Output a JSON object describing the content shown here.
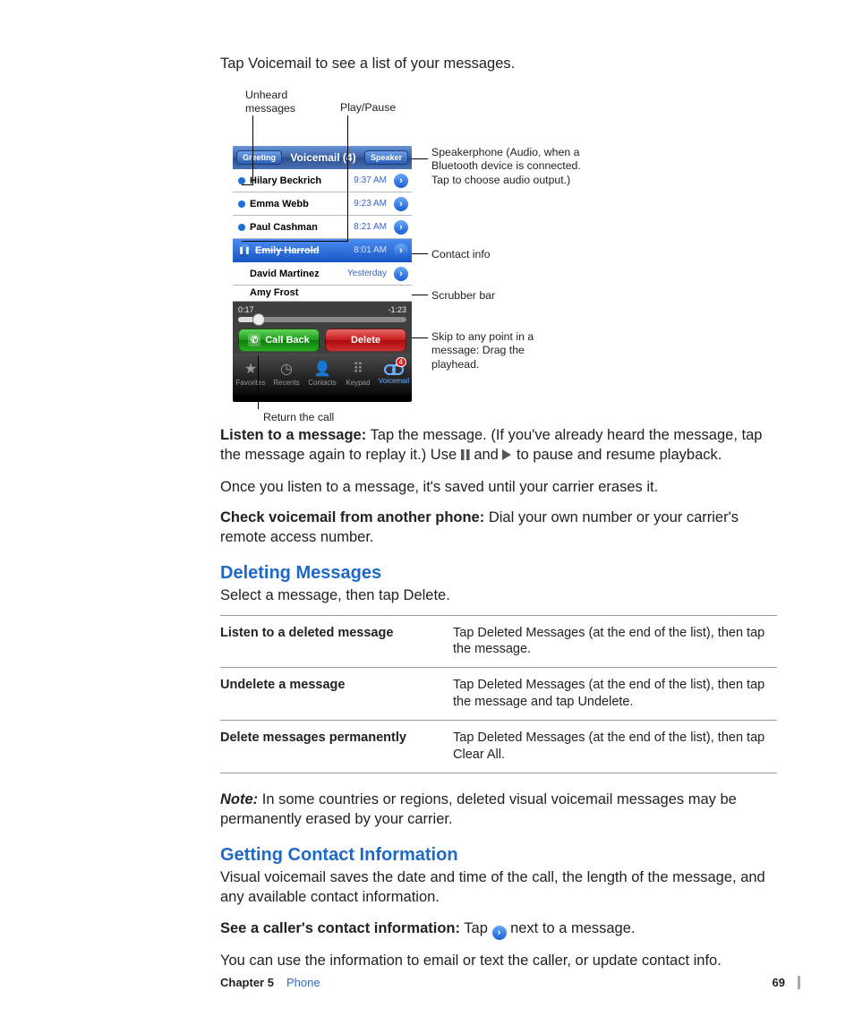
{
  "intro": "Tap Voicemail to see a list of your messages.",
  "callouts": {
    "unheard": "Unheard\nmessages",
    "playpause": "Play/Pause",
    "speaker": "Speakerphone (Audio, when a Bluetooth device is connected. Tap to choose audio output.)",
    "contact": "Contact info",
    "scrubber": "Scrubber bar",
    "skip": "Skip to any point in a message: Drag the playhead.",
    "return": "Return the call"
  },
  "phone": {
    "greeting": "Greeting",
    "title": "Voicemail (4)",
    "speaker": "Speaker",
    "rows": [
      {
        "dot": true,
        "name": "Hilary Beckrich",
        "time": "9:37 AM"
      },
      {
        "dot": true,
        "name": "Emma Webb",
        "time": "9:23 AM"
      },
      {
        "dot": true,
        "name": "Paul Cashman",
        "time": "8:21 AM"
      },
      {
        "dot": false,
        "name": "Emily Harrold",
        "time": "8:01 AM",
        "selected": true,
        "struck": true,
        "pp": true
      },
      {
        "dot": false,
        "name": "David Martinez",
        "time": "Yesterday"
      }
    ],
    "partial": "Amy Frost",
    "elapsed": "0:17",
    "remaining": "-1:23",
    "callback": "Call Back",
    "delete": "Delete",
    "tabs": [
      {
        "label": "Favorites",
        "icon": "★"
      },
      {
        "label": "Recents",
        "icon": "◷"
      },
      {
        "label": "Contacts",
        "icon": "👤"
      },
      {
        "label": "Keypad",
        "icon": "⠿"
      },
      {
        "label": "Voicemail",
        "icon": "vm",
        "active": true,
        "badge": "4"
      }
    ]
  },
  "listen_head": "Listen to a message:",
  "listen_body": " Tap the message. (If you've already heard the message, tap the message again to replay it.) Use ",
  "listen_body2": " and ",
  "listen_body3": " to pause and resume playback.",
  "listen_after": "Once you listen to a message, it's saved until your carrier erases it.",
  "check_head": "Check voicemail from another phone:",
  "check_body": " Dial your own number or your carrier's remote access number.",
  "h_delete": "Deleting Messages",
  "delete_intro": "Select a message, then tap Delete.",
  "table": [
    {
      "l": "Listen to a deleted message",
      "r": "Tap Deleted Messages (at the end of the list), then tap the message."
    },
    {
      "l": "Undelete a message",
      "r": "Tap Deleted Messages (at the end of the list), then tap the message and tap Undelete."
    },
    {
      "l": "Delete messages permanently",
      "r": "Tap Deleted Messages (at the end of the list), then tap Clear All."
    }
  ],
  "note_lead": "Note:",
  "note_body": "  In some countries or regions, deleted visual voicemail messages may be permanently erased by your carrier.",
  "h_contact": "Getting Contact Information",
  "contact_intro": "Visual voicemail saves the date and time of the call, the length of the message, and any available contact information.",
  "see_head": "See a caller's contact information:",
  "see_body1": " Tap ",
  "see_body2": " next to a message.",
  "contact_after": "You can use the information to email or text the caller, or update contact info.",
  "footer": {
    "chapter": "Chapter 5",
    "name": "Phone",
    "page": "69"
  }
}
